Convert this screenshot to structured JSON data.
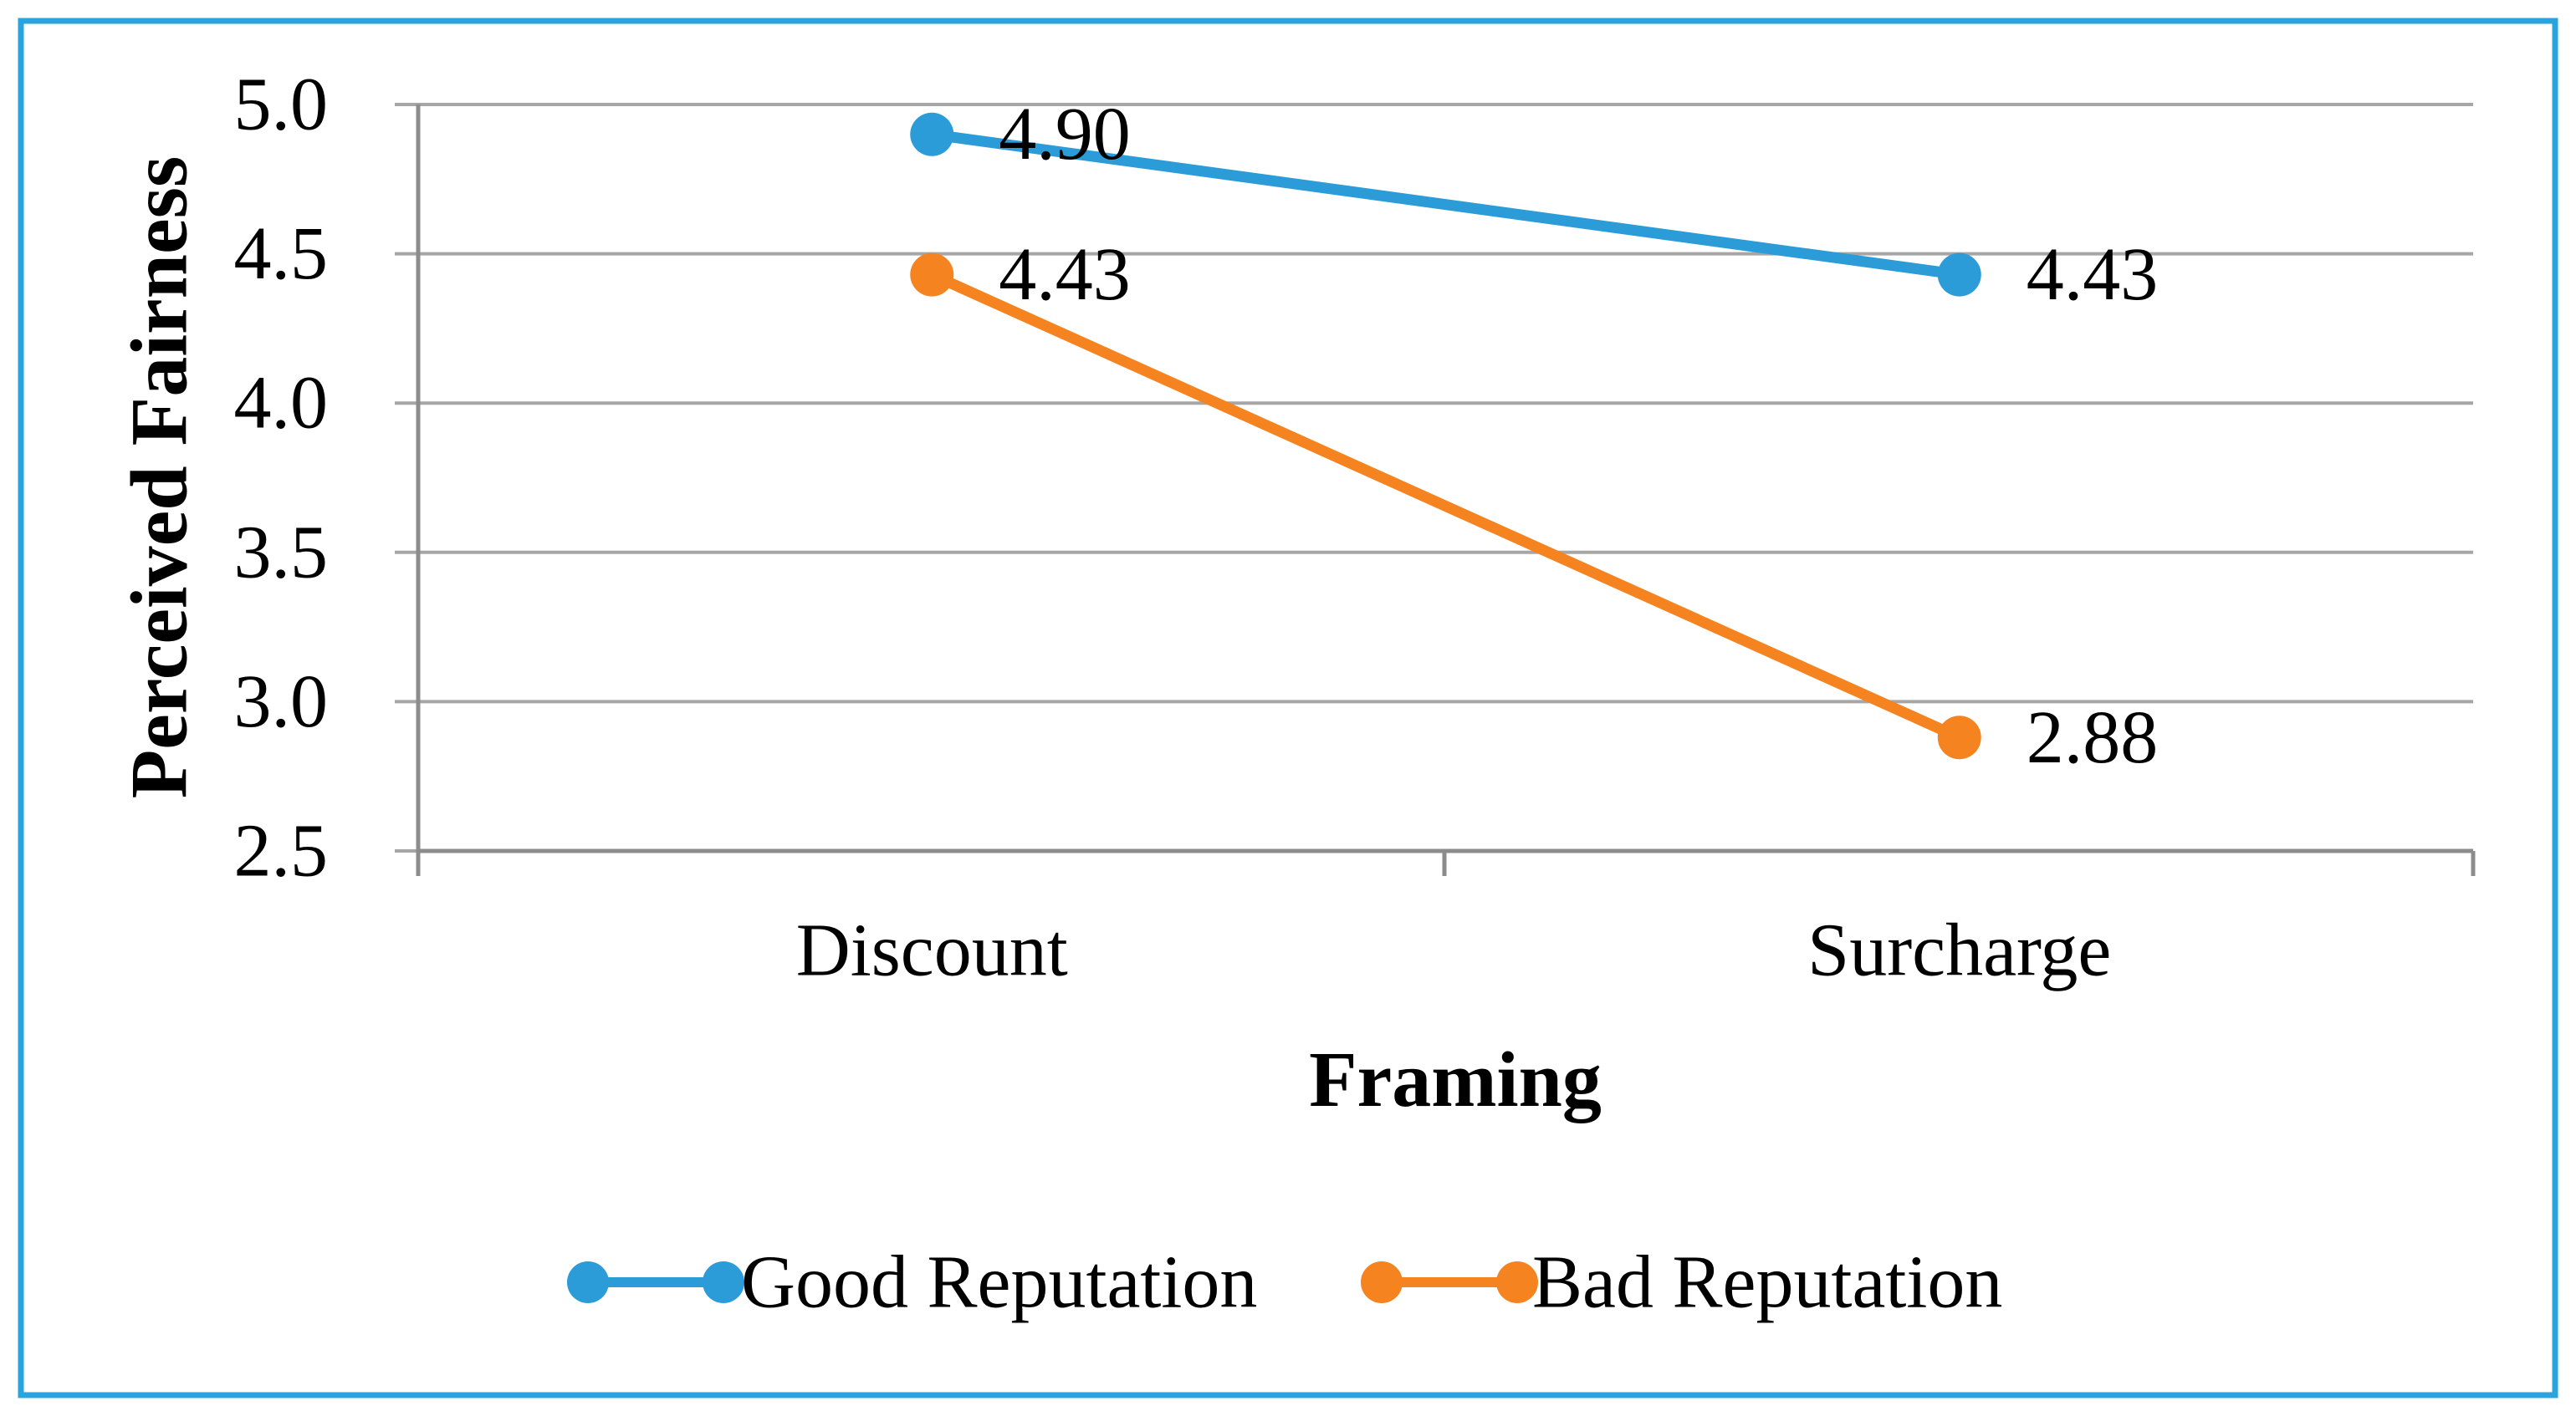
{
  "chart_data": {
    "type": "line",
    "title": "",
    "xlabel": "Framing",
    "ylabel": "Perceived Fairness",
    "categories": [
      "Discount",
      "Surcharge"
    ],
    "series": [
      {
        "name": "Good Reputation",
        "color": "#2B9CD8",
        "values": [
          4.9,
          4.43
        ],
        "point_labels": [
          "4.90",
          "4.43"
        ]
      },
      {
        "name": "Bad Reputation",
        "color": "#F5831F",
        "values": [
          4.43,
          2.88
        ],
        "point_labels": [
          "4.43",
          "2.88"
        ]
      }
    ],
    "ylim": [
      2.5,
      5.0
    ],
    "ytick_interval": 0.5,
    "ytick_labels": [
      "5.0",
      "4.5",
      "4.0",
      "3.5",
      "3.0",
      "2.5"
    ],
    "grid": "horizontal",
    "marker": "circle",
    "legend_position": "bottom",
    "colors": {
      "gridline": "#A6A6A6",
      "axis": "#8C8C8C",
      "text": "#000000",
      "frame_border": "#29A4DE",
      "background": "#FFFFFF"
    }
  }
}
